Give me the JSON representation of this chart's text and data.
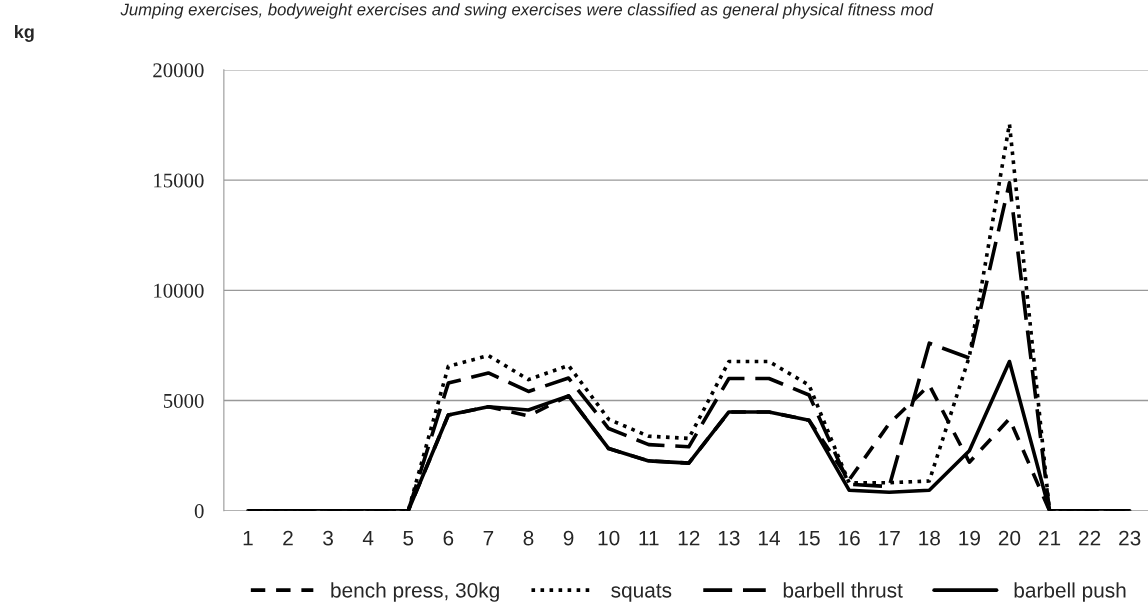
{
  "chart_data": {
    "type": "line",
    "annotations": [
      "kg",
      "Jumping exercises, bodyweight exercises and swing exercises were classified as general physical fitness mod"
    ],
    "categories": [
      "1",
      "2",
      "3",
      "4",
      "5",
      "6",
      "7",
      "8",
      "9",
      "10",
      "11",
      "12",
      "13",
      "14",
      "15",
      "16",
      "17",
      "18",
      "19",
      "20",
      "21",
      "22",
      "23"
    ],
    "series": [
      {
        "name": "bench press, 30kg",
        "color": "#000000",
        "line_style": "dashed",
        "values": [
          0,
          0,
          0,
          0,
          0,
          4340,
          4720,
          4300,
          5210,
          2820,
          2260,
          2160,
          4480,
          4480,
          4100,
          1400,
          3950,
          5700,
          2200,
          4170,
          0,
          0,
          0
        ]
      },
      {
        "name": "squats",
        "color": "#000000",
        "line_style": "dotted",
        "values": [
          0,
          0,
          0,
          0,
          0,
          6550,
          7040,
          5950,
          6590,
          4150,
          3380,
          3280,
          6770,
          6770,
          5700,
          1270,
          1270,
          1350,
          7000,
          17550,
          0,
          0,
          0
        ]
      },
      {
        "name": "barbell thrust",
        "color": "#000000",
        "line_style": "dashed",
        "values": [
          0,
          0,
          0,
          0,
          0,
          5790,
          6250,
          5410,
          6020,
          3730,
          3000,
          2900,
          6000,
          6000,
          5250,
          1200,
          1100,
          7600,
          6930,
          14880,
          0,
          0,
          0
        ]
      },
      {
        "name": "barbell push",
        "color": "#000000",
        "line_style": "solid",
        "values": [
          0,
          0,
          0,
          0,
          0,
          4340,
          4720,
          4570,
          5210,
          2820,
          2260,
          2160,
          4480,
          4480,
          4100,
          930,
          840,
          930,
          2720,
          6770,
          0,
          0,
          0
        ]
      }
    ],
    "ylim": [
      0,
      20000
    ],
    "yticks": [
      0,
      5000,
      10000,
      15000,
      20000
    ],
    "grid": "y",
    "legend": "bottom",
    "marker": "none"
  }
}
